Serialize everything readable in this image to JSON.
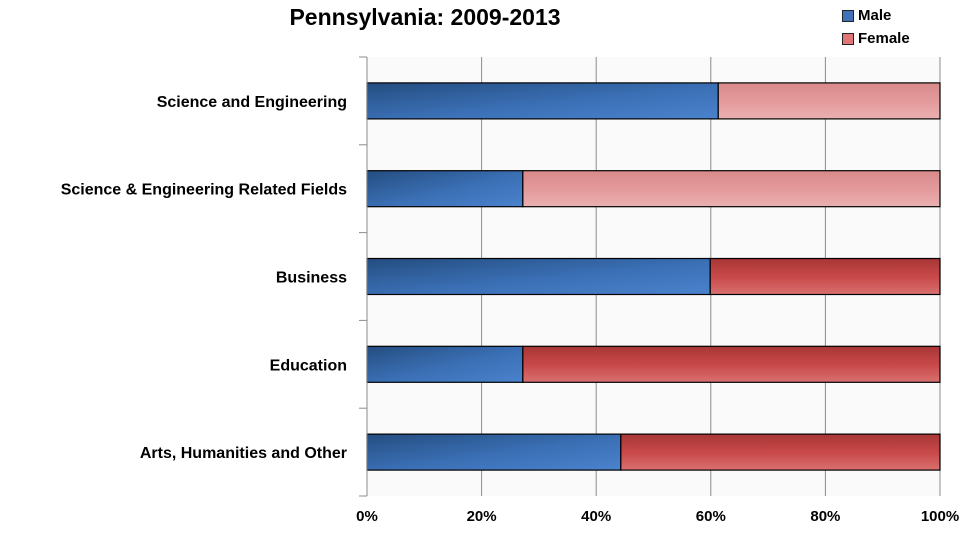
{
  "chart_data": {
    "type": "bar",
    "orientation": "horizontal",
    "stacked": "percent",
    "title": "Pennsylvania: 2009-2013",
    "xlabel": "",
    "ylabel": "",
    "xlim": [
      0,
      100
    ],
    "x_tick_labels": [
      "0%",
      "20%",
      "40%",
      "60%",
      "80%",
      "100%"
    ],
    "categories": [
      "Science and Engineering",
      "Science & Engineering Related Fields",
      "Business",
      "Education",
      "Arts, Humanities and Other"
    ],
    "series": [
      {
        "name": "Male",
        "color": "#3f72b8",
        "values": [
          61.3,
          27.2,
          59.9,
          27.2,
          44.3
        ]
      },
      {
        "name": "Female",
        "color": "#c94a4a",
        "values": [
          38.7,
          72.8,
          40.1,
          72.8,
          55.7
        ]
      }
    ],
    "female_light_color": "#e3999a",
    "female_light_categories": [
      0,
      1
    ],
    "grid": true,
    "legend_position": "top-right"
  }
}
